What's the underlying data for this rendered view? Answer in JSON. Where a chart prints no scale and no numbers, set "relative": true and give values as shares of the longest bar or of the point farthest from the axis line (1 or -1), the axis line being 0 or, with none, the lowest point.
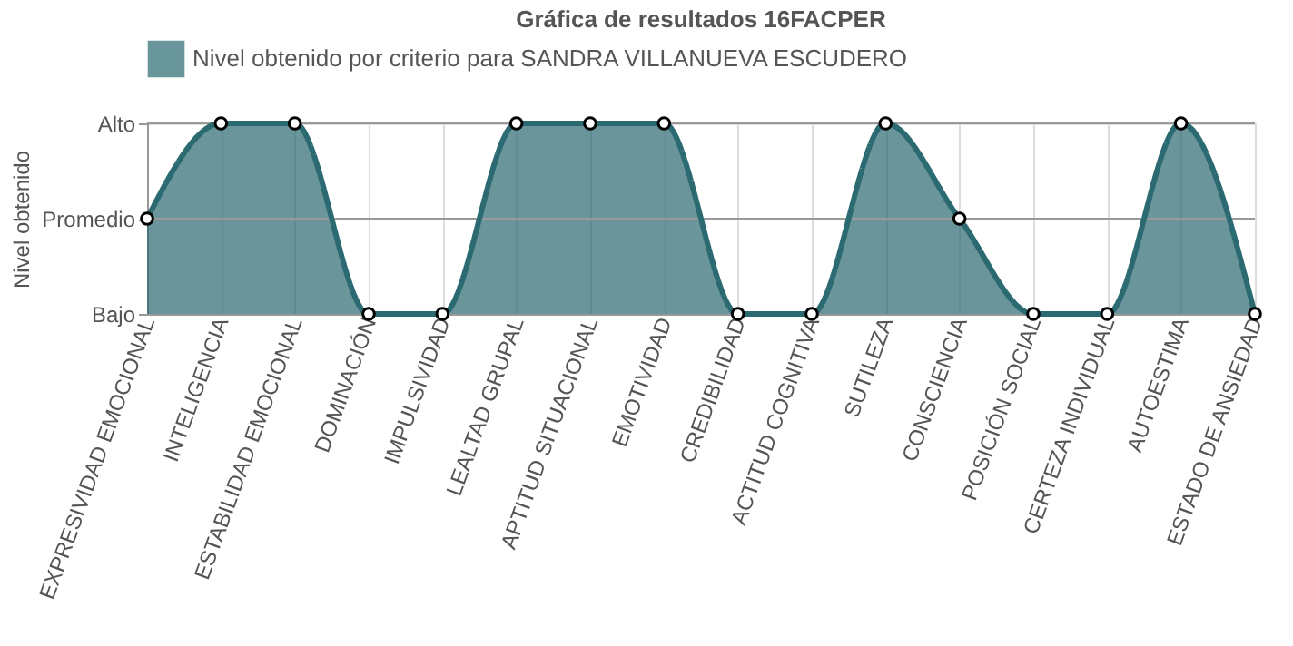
{
  "chart_data": {
    "type": "area",
    "title": "Gráfica de resultados 16FACPER",
    "ylabel": "Nivel obtenido",
    "categories": [
      "EXPRESIVIDAD EMOCIONAL",
      "INTELIGENCIA",
      "ESTABILIDAD EMOCIONAL",
      "DOMINACIÓN",
      "IMPULSIVIDAD",
      "LEALTAD GRUPAL",
      "APTITUD SITUACIONAL",
      "EMOTIVIDAD",
      "CREDIBILIDAD",
      "ACTITUD COGNITIVA",
      "SUTILEZA",
      "CONSCIENCIA",
      "POSICIÓN SOCIAL",
      "CERTEZA INDIVIDUAL",
      "AUTOESTIMA",
      "ESTADO DE ANSIEDAD"
    ],
    "series": [
      {
        "name": "Nivel obtenido por criterio para SANDRA VILLANUEVA ESCUDERO",
        "color": "#2b6a71",
        "values": [
          0.5,
          1,
          1,
          0,
          0,
          1,
          1,
          1,
          0,
          0,
          1,
          0.5,
          0,
          0,
          1,
          0
        ]
      }
    ],
    "relative": true,
    "y_categories": [
      "Alto",
      "Promedio",
      "Bajo"
    ],
    "ref_lines": [
      {
        "axis": "y",
        "value": 1,
        "color": "#999999"
      },
      {
        "axis": "y",
        "value": 0.5,
        "color": "#999999"
      }
    ],
    "grid": "x",
    "legend": "top",
    "marker": "circle",
    "line_style": "solid"
  }
}
